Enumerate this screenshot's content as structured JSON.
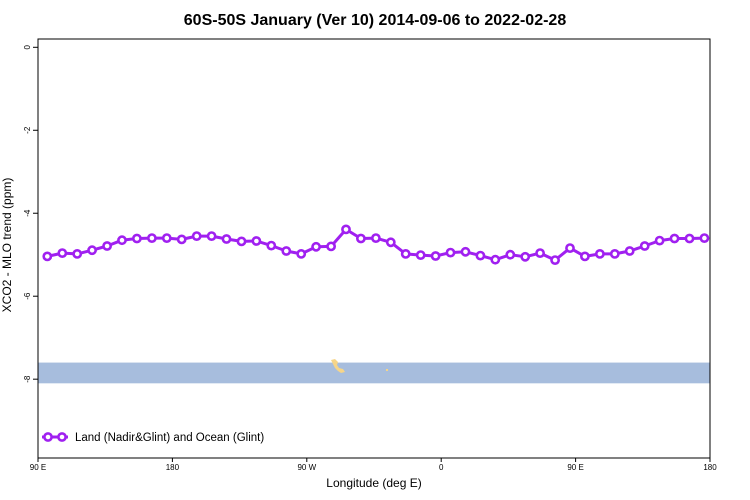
{
  "chart_data": {
    "type": "line",
    "title": "60S-50S January (Ver 10)   2014-09-06 to 2022-02-28",
    "xlabel": "Longitude (deg E)",
    "ylabel": "XCO2 - MLO trend (ppm)",
    "xlim": [
      90,
      450
    ],
    "ylim": [
      -9.9,
      0.2
    ],
    "x_ticks": [
      {
        "value": 90,
        "label": "90 E"
      },
      {
        "value": 162,
        "label": "180"
      },
      {
        "value": 234,
        "label": "90 W"
      },
      {
        "value": 306,
        "label": "0"
      },
      {
        "value": 378,
        "label": "90 E"
      },
      {
        "value": 450,
        "label": "180"
      }
    ],
    "y_ticks": [
      {
        "value": 0,
        "label": "0"
      },
      {
        "value": -2,
        "label": "-2"
      },
      {
        "value": -4,
        "label": "-4"
      },
      {
        "value": -6,
        "label": "-6"
      },
      {
        "value": -8,
        "label": "-8"
      }
    ],
    "series": [
      {
        "name": "Land (Nadir&Glint) and Ocean (Glint)",
        "color": "#a020f0",
        "x": [
          95,
          103,
          111,
          119,
          127,
          135,
          143,
          151,
          159,
          167,
          175,
          183,
          191,
          199,
          207,
          215,
          223,
          231,
          239,
          247,
          255,
          263,
          271,
          279,
          287,
          295,
          303,
          311,
          319,
          327,
          335,
          343,
          351,
          359,
          367,
          375,
          383,
          391,
          399,
          407,
          415,
          423,
          431,
          439,
          447
        ],
        "y": [
          -5.04,
          -4.96,
          -4.98,
          -4.89,
          -4.79,
          -4.65,
          -4.61,
          -4.6,
          -4.6,
          -4.63,
          -4.55,
          -4.55,
          -4.62,
          -4.68,
          -4.67,
          -4.78,
          -4.91,
          -4.98,
          -4.81,
          -4.8,
          -4.39,
          -4.61,
          -4.6,
          -4.7,
          -4.98,
          -5.01,
          -5.03,
          -4.95,
          -4.93,
          -5.02,
          -5.12,
          -5.0,
          -5.05,
          -4.96,
          -5.13,
          -4.84,
          -5.04,
          -4.98,
          -4.98,
          -4.91,
          -4.79,
          -4.66,
          -4.61,
          -4.61,
          -4.6
        ]
      }
    ],
    "map_strip": {
      "y_range": [
        -8.1,
        -7.6
      ],
      "ocean_color": "#a7bddd",
      "land_color": "#f6d589"
    },
    "legend": {
      "placement": "bottom-left"
    },
    "grid": false
  }
}
